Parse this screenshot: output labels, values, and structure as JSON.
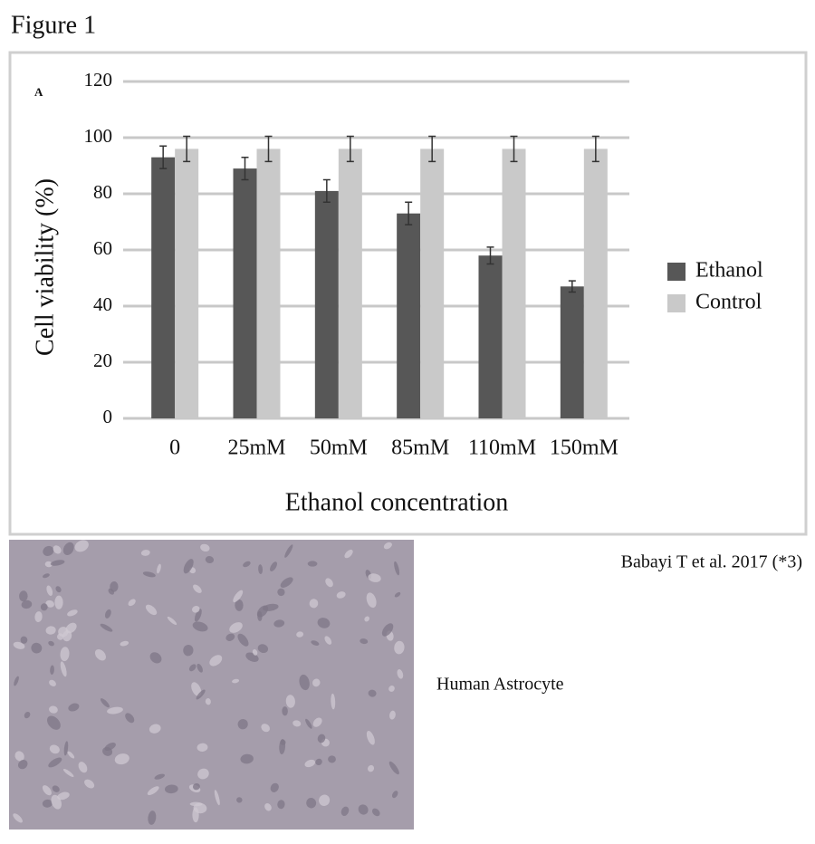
{
  "figure_label": "Figure 1",
  "panel_label": "A",
  "citation": "Babayi T et al. 2017 (*3)",
  "image_caption": "Human Astrocyte",
  "chart_data": {
    "type": "bar",
    "x_label": "Ethanol concentration",
    "y_label": "Cell viability (%)",
    "categories": [
      "0",
      "25mM",
      "50mM",
      "85mM",
      "110mM",
      "150mM"
    ],
    "series": [
      {
        "name": "Ethanol",
        "color": "#575757",
        "values": [
          93,
          89,
          81,
          73,
          58,
          47
        ],
        "errors": [
          4,
          4,
          4,
          4,
          3,
          2
        ]
      },
      {
        "name": "Control",
        "color": "#c9c9c9",
        "values": [
          96,
          96,
          96,
          96,
          96,
          96
        ],
        "errors": [
          4.5,
          4.5,
          4.5,
          4.5,
          4.5,
          4.5
        ]
      }
    ],
    "ylim": [
      0,
      120
    ],
    "yticks": [
      0,
      20,
      40,
      60,
      80,
      100,
      120
    ],
    "grid": true,
    "legend": "right"
  }
}
